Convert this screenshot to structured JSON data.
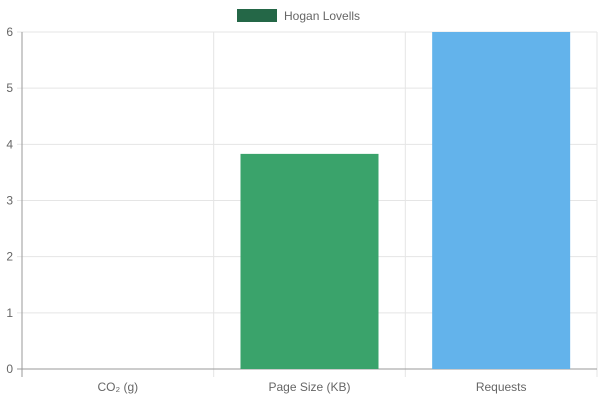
{
  "chart_data": {
    "type": "bar",
    "categories": [
      "CO₂ (g)",
      "Page Size (KB)",
      "Requests"
    ],
    "series": [
      {
        "name": "Hogan Lovells",
        "values": [
          0,
          3.83,
          6
        ],
        "bar_colors": [
          "#3aa36b",
          "#3aa36b",
          "#63b3eb"
        ]
      }
    ],
    "legend": {
      "position": "top-center",
      "swatch_color": "#246747"
    },
    "ylim": [
      0,
      6
    ],
    "y_ticks": [
      "0",
      "1",
      "2",
      "3",
      "4",
      "5",
      "6"
    ],
    "grid": true,
    "colors": {
      "grid": "#e5e5e5",
      "axis": "#9a9a9a",
      "tick_text": "#666666"
    }
  }
}
